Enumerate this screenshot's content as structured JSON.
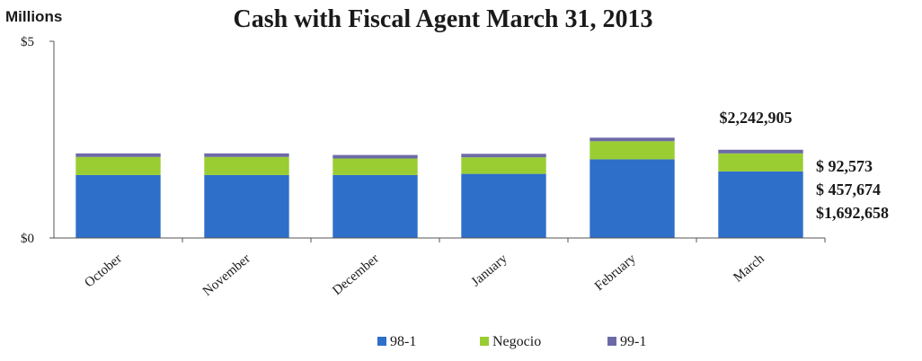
{
  "chart_data": {
    "type": "bar",
    "stacked": true,
    "title": "Cash with Fiscal Agent March 31, 2013",
    "units_label": "Millions",
    "categories": [
      "October",
      "November",
      "December",
      "January",
      "February",
      "March"
    ],
    "series": [
      {
        "name": "98-1",
        "color": "#2e6fc9",
        "values": [
          1.6,
          1.6,
          1.6,
          1.63,
          2.0,
          1.692658
        ]
      },
      {
        "name": "Negocio",
        "color": "#9acd32",
        "values": [
          0.46,
          0.46,
          0.42,
          0.42,
          0.46,
          0.457674
        ]
      },
      {
        "name": "99-1",
        "color": "#6c6aa6",
        "values": [
          0.09,
          0.09,
          0.09,
          0.09,
          0.09,
          0.092573
        ]
      }
    ],
    "ylim": [
      0,
      5
    ],
    "yticks": [
      {
        "value": 0,
        "label": "$0"
      },
      {
        "value": 5,
        "label": "$5"
      }
    ],
    "annotations": {
      "total": "$2,242,905",
      "series_values": [
        "$ 92,573",
        "$ 457,674",
        "$1,692,658"
      ]
    },
    "legend_position": "bottom-center",
    "grid": false
  }
}
